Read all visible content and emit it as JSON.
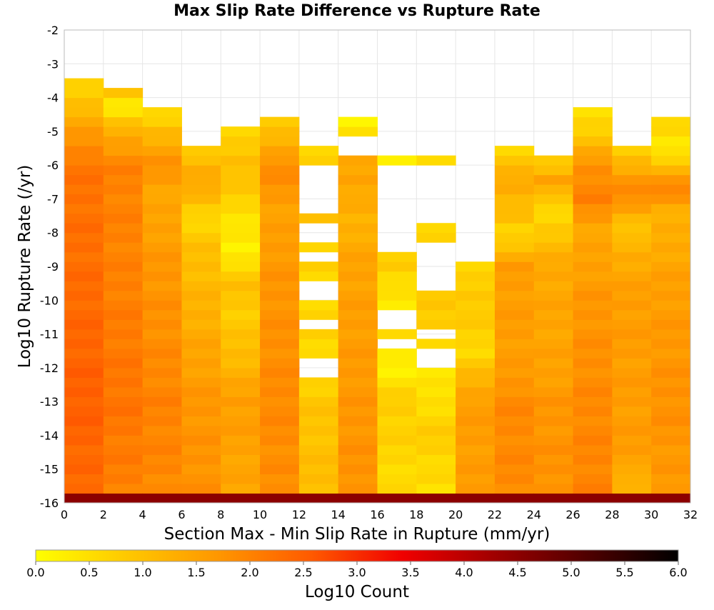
{
  "chart_data": {
    "type": "heatmap",
    "title": "Max Slip Rate Difference vs Rupture Rate",
    "xlabel": "Section Max - Min Slip Rate in Rupture (mm/yr)",
    "ylabel": "Log10 Rupture Rate (/yr)",
    "xlim": [
      0,
      32
    ],
    "ylim": [
      -16,
      -2
    ],
    "x_ticks": [
      "0",
      "2",
      "4",
      "6",
      "8",
      "10",
      "12",
      "14",
      "16",
      "18",
      "20",
      "22",
      "24",
      "26",
      "28",
      "30",
      "32"
    ],
    "y_ticks": [
      "-2",
      "-3",
      "-4",
      "-5",
      "-6",
      "-7",
      "-8",
      "-9",
      "-10",
      "-11",
      "-12",
      "-13",
      "-14",
      "-15",
      "-16"
    ],
    "x_bin_width": 2,
    "y_bin_height": 0.2857,
    "grid": true,
    "colorbar": {
      "label": "Log10 Count",
      "range": [
        0,
        6
      ],
      "ticks": [
        "0.0",
        "0.5",
        "1.0",
        "1.5",
        "2.0",
        "2.5",
        "3.0",
        "3.5",
        "4.0",
        "4.5",
        "5.0",
        "5.5",
        "6.0"
      ],
      "stops": [
        "#ffff00",
        "#ffc800",
        "#ff9600",
        "#ff5a00",
        "#f00000",
        "#a00000",
        "#500000",
        "#000000"
      ]
    },
    "columns": [
      {
        "x_start": 0,
        "top": -3.55,
        "profile": [
          [
            -3.6,
            0.6
          ],
          [
            -5,
            1.6
          ],
          [
            -6,
            2.2
          ],
          [
            -9,
            2.3
          ],
          [
            -13,
            2.5
          ],
          [
            -16,
            2.3
          ]
        ],
        "gaps": []
      },
      {
        "x_start": 2,
        "top": -3.85,
        "profile": [
          [
            -3.9,
            0.9
          ],
          [
            -4.3,
            0.2
          ],
          [
            -5,
            1.3
          ],
          [
            -6,
            2.0
          ],
          [
            -9,
            2.0
          ],
          [
            -13,
            2.2
          ],
          [
            -16,
            2.0
          ]
        ],
        "gaps": []
      },
      {
        "x_start": 4,
        "top": -4.42,
        "profile": [
          [
            -4.5,
            0.5
          ],
          [
            -5,
            1.1
          ],
          [
            -6,
            1.8
          ],
          [
            -7,
            1.4
          ],
          [
            -9,
            1.7
          ],
          [
            -12,
            1.9
          ],
          [
            -13,
            2.0
          ],
          [
            -16,
            1.9
          ]
        ],
        "gaps": []
      },
      {
        "x_start": 6,
        "top": -5.3,
        "profile": [
          [
            -5.4,
            0.5
          ],
          [
            -6,
            1.2
          ],
          [
            -6.5,
            1.5
          ],
          [
            -7.5,
            0.6
          ],
          [
            -8.5,
            1.0
          ],
          [
            -10,
            1.2
          ],
          [
            -13,
            1.7
          ],
          [
            -16,
            1.8
          ]
        ],
        "gaps": []
      },
      {
        "x_start": 8,
        "top": -5.0,
        "profile": [
          [
            -5.1,
            0.6
          ],
          [
            -6,
            1.1
          ],
          [
            -7.5,
            0.5
          ],
          [
            -8.5,
            0.2
          ],
          [
            -9.5,
            1.0
          ],
          [
            -10.5,
            0.8
          ],
          [
            -12,
            1.2
          ],
          [
            -13,
            1.6
          ],
          [
            -16,
            1.4
          ]
        ],
        "gaps": []
      },
      {
        "x_start": 10,
        "top": -4.7,
        "profile": [
          [
            -4.8,
            0.8
          ],
          [
            -5.5,
            1.4
          ],
          [
            -6,
            1.9
          ],
          [
            -7.5,
            1.5
          ],
          [
            -9,
            1.7
          ],
          [
            -11,
            1.8
          ],
          [
            -13,
            1.9
          ],
          [
            -16,
            1.8
          ]
        ],
        "gaps": []
      },
      {
        "x_start": 12,
        "top": -5.3,
        "profile": [
          [
            -5.4,
            0.7
          ],
          [
            -7.5,
            0.9
          ],
          [
            -10,
            0.5
          ],
          [
            -11,
            0.7
          ],
          [
            -12,
            0.5
          ],
          [
            -13,
            0.9
          ],
          [
            -16,
            1.1
          ]
        ],
        "gaps": [
          [
            -7.5,
            -6.0
          ],
          [
            -8.2,
            -7.7
          ],
          [
            -8.9,
            -8.5
          ],
          [
            -9.9,
            -9.3
          ],
          [
            -11.0,
            -10.7
          ],
          [
            -12.2,
            -11.8
          ]
        ]
      },
      {
        "x_start": 14,
        "top": -4.7,
        "profile": [
          [
            -4.8,
            0.2
          ],
          [
            -5.7,
            1.3
          ],
          [
            -6.5,
            1.5
          ],
          [
            -7.5,
            1.2
          ],
          [
            -9,
            1.5
          ],
          [
            -11,
            1.6
          ],
          [
            -13,
            1.7
          ],
          [
            -16,
            1.8
          ]
        ],
        "gaps": [
          [
            -5.7,
            -5.05
          ]
        ]
      },
      {
        "x_start": 16,
        "top": -5.8,
        "profile": [
          [
            -5.9,
            0.3
          ],
          [
            -9,
            0.8
          ],
          [
            -10,
            0.3
          ],
          [
            -11,
            0.6
          ],
          [
            -12,
            0.2
          ],
          [
            -13,
            0.8
          ],
          [
            -16,
            0.5
          ]
        ],
        "gaps": [
          [
            -8.7,
            -6.1
          ],
          [
            -10.8,
            -10.4
          ],
          [
            -11.3,
            -11.1
          ]
        ]
      },
      {
        "x_start": 18,
        "top": -5.8,
        "profile": [
          [
            -5.9,
            0.5
          ],
          [
            -8.2,
            0.6
          ],
          [
            -10,
            0.9
          ],
          [
            -11,
            0.8
          ],
          [
            -12,
            0.3
          ],
          [
            -13,
            0.5
          ],
          [
            -14,
            0.8
          ],
          [
            -16,
            0.4
          ]
        ],
        "gaps": [
          [
            -7.8,
            -6.1
          ],
          [
            -9.6,
            -8.4
          ],
          [
            -11.1,
            -10.8
          ],
          [
            -11.9,
            -11.5
          ]
        ]
      },
      {
        "x_start": 20,
        "top": -9.0,
        "profile": [
          [
            -9.1,
            0.6
          ],
          [
            -10,
            0.9
          ],
          [
            -11.5,
            0.6
          ],
          [
            -12.5,
            1.3
          ],
          [
            -13,
            1.6
          ],
          [
            -16,
            1.6
          ]
        ],
        "gaps": []
      },
      {
        "x_start": 22,
        "top": -5.55,
        "profile": [
          [
            -5.6,
            0.7
          ],
          [
            -6.5,
            1.4
          ],
          [
            -7.5,
            1.0
          ],
          [
            -8,
            0.6
          ],
          [
            -9,
            1.6
          ],
          [
            -12,
            1.6
          ],
          [
            -13,
            1.9
          ],
          [
            -16,
            1.9
          ]
        ],
        "gaps": []
      },
      {
        "x_start": 24,
        "top": -5.85,
        "profile": [
          [
            -5.9,
            0.7
          ],
          [
            -6.5,
            1.6
          ],
          [
            -7.3,
            0.5
          ],
          [
            -8,
            0.9
          ],
          [
            -9,
            1.4
          ],
          [
            -12,
            1.5
          ],
          [
            -13,
            1.7
          ],
          [
            -16,
            1.8
          ]
        ],
        "gaps": []
      },
      {
        "x_start": 26,
        "top": -4.42,
        "profile": [
          [
            -4.5,
            0.5
          ],
          [
            -5.3,
            1.0
          ],
          [
            -6,
            1.8
          ],
          [
            -7,
            2.0
          ],
          [
            -8,
            1.4
          ],
          [
            -10,
            1.7
          ],
          [
            -13,
            1.9
          ],
          [
            -16,
            2.0
          ]
        ],
        "gaps": []
      },
      {
        "x_start": 28,
        "top": -5.55,
        "profile": [
          [
            -5.6,
            0.8
          ],
          [
            -6.5,
            1.8
          ],
          [
            -7,
            1.8
          ],
          [
            -8,
            0.8
          ],
          [
            -8.5,
            1.3
          ],
          [
            -10,
            1.6
          ],
          [
            -14.8,
            1.6
          ],
          [
            -15.2,
            1.1
          ],
          [
            -16,
            1.5
          ]
        ],
        "gaps": []
      },
      {
        "x_start": 30,
        "top": -4.7,
        "profile": [
          [
            -4.8,
            0.6
          ],
          [
            -5.5,
            0.3
          ],
          [
            -6,
            1.0
          ],
          [
            -6.7,
            2.0
          ],
          [
            -7.5,
            1.2
          ],
          [
            -8.5,
            1.4
          ],
          [
            -10,
            1.6
          ],
          [
            -13,
            1.8
          ],
          [
            -16,
            1.6
          ]
        ],
        "gaps": []
      }
    ],
    "bottom_row_value": 4.5
  }
}
